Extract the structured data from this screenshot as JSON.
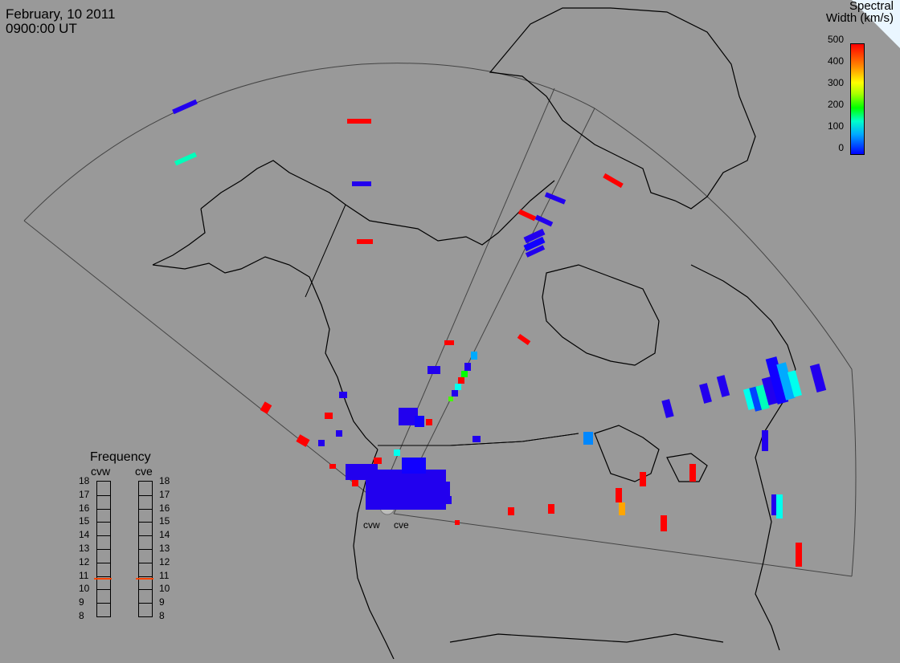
{
  "header": {
    "date": "February, 10 2011",
    "time": "0900:00 UT"
  },
  "colorbar": {
    "title_line1": "Spectral",
    "title_line2": "Width (km/s)",
    "ticks": [
      "500",
      "400",
      "300",
      "200",
      "100",
      "0"
    ]
  },
  "frequency": {
    "title": "Frequency",
    "radar_left": "cvw",
    "radar_right": "cve",
    "scale": [
      "18",
      "17",
      "16",
      "15",
      "14",
      "13",
      "12",
      "11",
      "10",
      "9",
      "8"
    ],
    "cvw_mhz": 10.8,
    "cve_mhz": 10.8
  },
  "radars": {
    "cvw": "cvw",
    "cve": "cve"
  },
  "colors": {
    "background": "#999999",
    "land_outline": "#000000",
    "fov_line": "#444444",
    "red": "#ff0000",
    "blue": "#2200ee",
    "cyan": "#00ffee",
    "teal": "#00ffbb",
    "orange": "#ffa500",
    "green": "#44ff00",
    "ltblue": "#0088ff"
  }
}
